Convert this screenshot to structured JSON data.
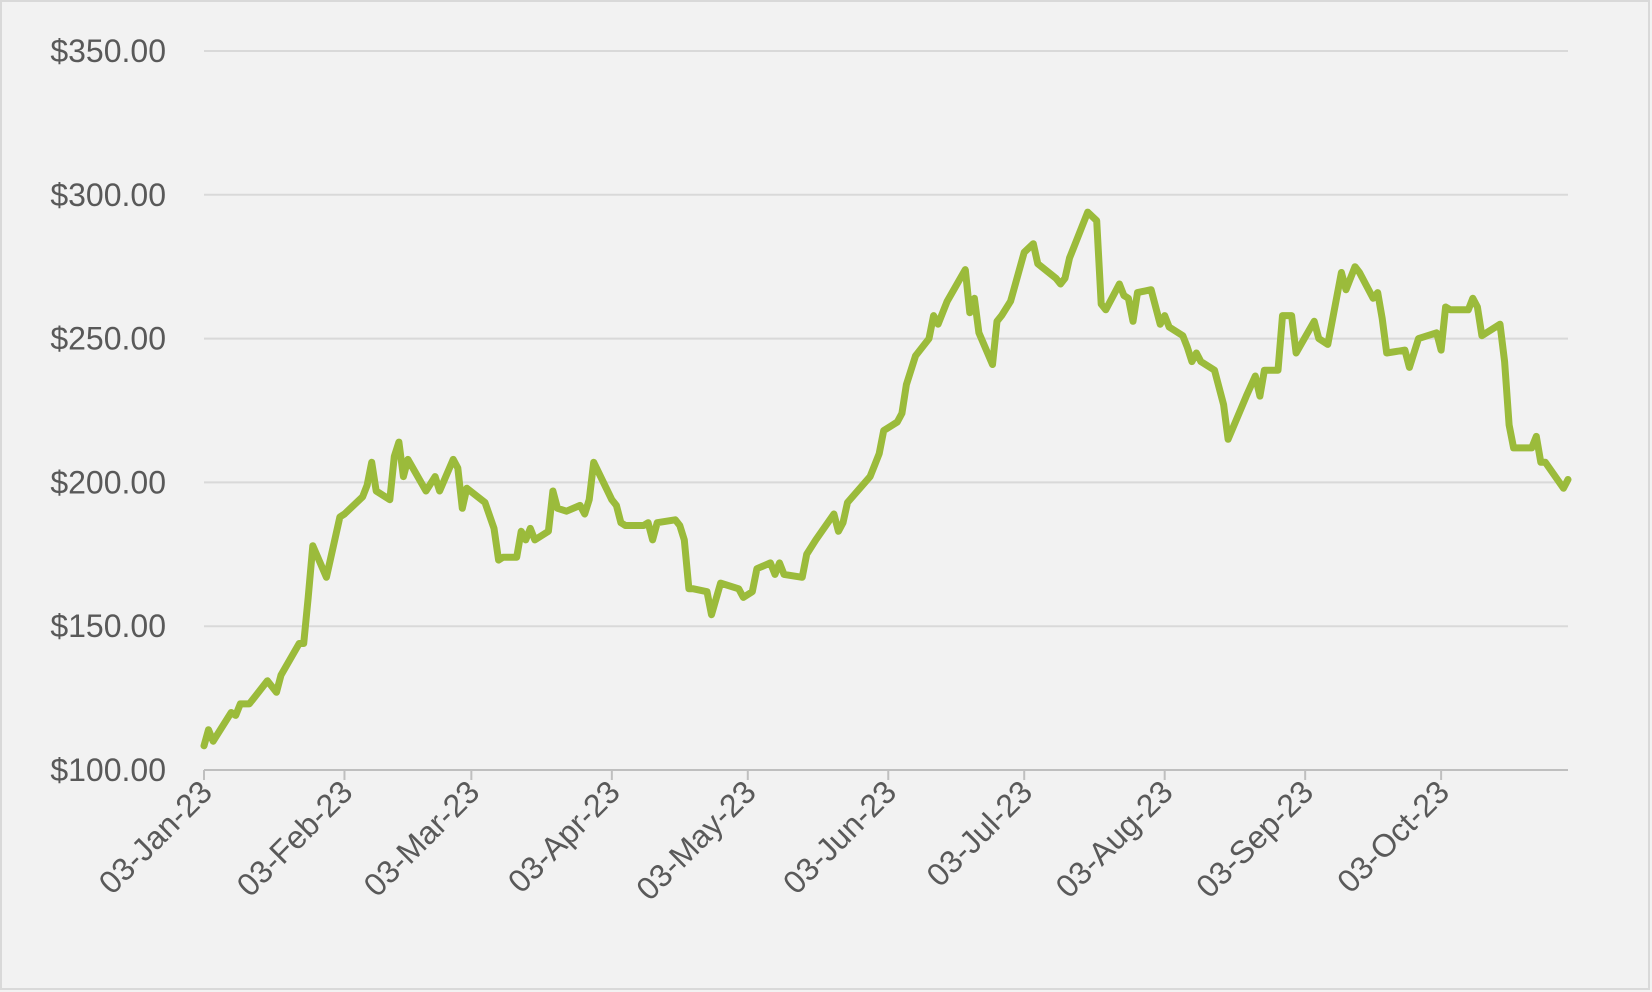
{
  "chart_data": {
    "type": "line",
    "color": "#9bbb3b",
    "grid": true,
    "xlim": [
      "2023-01-03",
      "2023-10-31"
    ],
    "xticks": [
      {
        "value": "2023-01-03",
        "label": "03-Jan-23"
      },
      {
        "value": "2023-02-03",
        "label": "03-Feb-23"
      },
      {
        "value": "2023-03-03",
        "label": "03-Mar-23"
      },
      {
        "value": "2023-04-03",
        "label": "03-Apr-23"
      },
      {
        "value": "2023-05-03",
        "label": "03-May-23"
      },
      {
        "value": "2023-06-03",
        "label": "03-Jun-23"
      },
      {
        "value": "2023-07-03",
        "label": "03-Jul-23"
      },
      {
        "value": "2023-08-03",
        "label": "03-Aug-23"
      },
      {
        "value": "2023-09-03",
        "label": "03-Sep-23"
      },
      {
        "value": "2023-10-03",
        "label": "03-Oct-23"
      }
    ],
    "ylim": [
      100,
      350
    ],
    "yticks": [
      {
        "value": 100,
        "label": "$100.00"
      },
      {
        "value": 150,
        "label": "$150.00"
      },
      {
        "value": 200,
        "label": "$200.00"
      },
      {
        "value": 250,
        "label": "$250.00"
      },
      {
        "value": 300,
        "label": "$300.00"
      },
      {
        "value": 350,
        "label": "$350.00"
      }
    ],
    "x": [
      "2023-01-03",
      "2023-01-04",
      "2023-01-05",
      "2023-01-09",
      "2023-01-10",
      "2023-01-11",
      "2023-01-13",
      "2023-01-17",
      "2023-01-19",
      "2023-01-20",
      "2023-01-24",
      "2023-01-25",
      "2023-01-26",
      "2023-01-27",
      "2023-01-30",
      "2023-02-02",
      "2023-02-03",
      "2023-02-07",
      "2023-02-08",
      "2023-02-09",
      "2023-02-10",
      "2023-02-13",
      "2023-02-14",
      "2023-02-15",
      "2023-02-16",
      "2023-02-17",
      "2023-02-21",
      "2023-02-23",
      "2023-02-24",
      "2023-02-27",
      "2023-02-28",
      "2023-03-01",
      "2023-03-02",
      "2023-03-06",
      "2023-03-08",
      "2023-03-09",
      "2023-03-10",
      "2023-03-13",
      "2023-03-14",
      "2023-03-15",
      "2023-03-16",
      "2023-03-17",
      "2023-03-20",
      "2023-03-21",
      "2023-03-22",
      "2023-03-24",
      "2023-03-27",
      "2023-03-28",
      "2023-03-29",
      "2023-03-30",
      "2023-04-03",
      "2023-04-04",
      "2023-04-05",
      "2023-04-06",
      "2023-04-10",
      "2023-04-11",
      "2023-04-12",
      "2023-04-13",
      "2023-04-17",
      "2023-04-18",
      "2023-04-19",
      "2023-04-20",
      "2023-04-21",
      "2023-04-24",
      "2023-04-25",
      "2023-04-27",
      "2023-05-01",
      "2023-05-02",
      "2023-05-04",
      "2023-05-05",
      "2023-05-08",
      "2023-05-09",
      "2023-05-10",
      "2023-05-11",
      "2023-05-15",
      "2023-05-16",
      "2023-05-18",
      "2023-05-22",
      "2023-05-23",
      "2023-05-24",
      "2023-05-25",
      "2023-05-30",
      "2023-05-31",
      "2023-06-01",
      "2023-06-02",
      "2023-06-05",
      "2023-06-06",
      "2023-06-07",
      "2023-06-09",
      "2023-06-12",
      "2023-06-13",
      "2023-06-14",
      "2023-06-16",
      "2023-06-20",
      "2023-06-21",
      "2023-06-22",
      "2023-06-23",
      "2023-06-26",
      "2023-06-27",
      "2023-06-28",
      "2023-06-30",
      "2023-07-03",
      "2023-07-05",
      "2023-07-06",
      "2023-07-10",
      "2023-07-11",
      "2023-07-12",
      "2023-07-13",
      "2023-07-14",
      "2023-07-17",
      "2023-07-19",
      "2023-07-20",
      "2023-07-21",
      "2023-07-24",
      "2023-07-25",
      "2023-07-26",
      "2023-07-27",
      "2023-07-28",
      "2023-07-31",
      "2023-08-02",
      "2023-08-03",
      "2023-08-04",
      "2023-08-07",
      "2023-08-08",
      "2023-08-09",
      "2023-08-10",
      "2023-08-11",
      "2023-08-14",
      "2023-08-16",
      "2023-08-17",
      "2023-08-21",
      "2023-08-23",
      "2023-08-24",
      "2023-08-25",
      "2023-08-28",
      "2023-08-29",
      "2023-08-31",
      "2023-09-01",
      "2023-09-05",
      "2023-09-06",
      "2023-09-08",
      "2023-09-11",
      "2023-09-12",
      "2023-09-14",
      "2023-09-15",
      "2023-09-18",
      "2023-09-19",
      "2023-09-20",
      "2023-09-21",
      "2023-09-25",
      "2023-09-26",
      "2023-09-28",
      "2023-10-02",
      "2023-10-03",
      "2023-10-04",
      "2023-10-05",
      "2023-10-06",
      "2023-10-09",
      "2023-10-10",
      "2023-10-11",
      "2023-10-12",
      "2023-10-16",
      "2023-10-17",
      "2023-10-18",
      "2023-10-19",
      "2023-10-23",
      "2023-10-24",
      "2023-10-25",
      "2023-10-26",
      "2023-10-30",
      "2023-10-31"
    ],
    "values": [
      108.4,
      114,
      110,
      120,
      119,
      123,
      123,
      131,
      127,
      133,
      144,
      144,
      160,
      178,
      167,
      188,
      189,
      195,
      199,
      207,
      197,
      194,
      209,
      214,
      202,
      208,
      197,
      202,
      197,
      208,
      205,
      191,
      198,
      193,
      184,
      173,
      174,
      174,
      183,
      180,
      184,
      180,
      183,
      197,
      191,
      190,
      192,
      189,
      194,
      207,
      194,
      192,
      186,
      185,
      185,
      186,
      180,
      186,
      187,
      185,
      180,
      163,
      163,
      162,
      154,
      165,
      163,
      160,
      162,
      170,
      172,
      168,
      172,
      168,
      167,
      175,
      180,
      189,
      183,
      186,
      193,
      202,
      206,
      210,
      218,
      221,
      224,
      234,
      244,
      250,
      258,
      255,
      263,
      274,
      259,
      264,
      252,
      241,
      256,
      258,
      263,
      280,
      283,
      276,
      271,
      269,
      271,
      278,
      282,
      294,
      291,
      262,
      260,
      269,
      265,
      264,
      256,
      266,
      267,
      255,
      258,
      254,
      251,
      247,
      242,
      245,
      242,
      239,
      227,
      215,
      230,
      237,
      230,
      239,
      239,
      258,
      258,
      245,
      256,
      250,
      248,
      273,
      267,
      275,
      273,
      264,
      266,
      257,
      245,
      246,
      240,
      250,
      252,
      246,
      261,
      260,
      260,
      260,
      264,
      261,
      251,
      255,
      242,
      220,
      212,
      212,
      216,
      207,
      207,
      198,
      201
    ]
  }
}
